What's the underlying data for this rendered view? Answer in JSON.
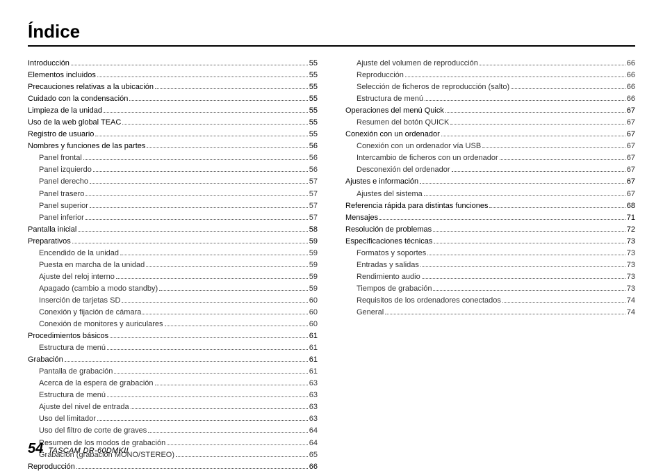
{
  "title": "Índice",
  "footer": {
    "page": "54",
    "product": "TASCAM  DR-60DMKII"
  },
  "leftColumn": [
    {
      "level": 1,
      "label": "Introducción",
      "page": "55"
    },
    {
      "level": 1,
      "label": "Elementos incluidos",
      "page": "55"
    },
    {
      "level": 1,
      "label": "Precauciones relativas a la ubicación",
      "page": "55"
    },
    {
      "level": 1,
      "label": "Cuidado con la condensación",
      "page": "55"
    },
    {
      "level": 1,
      "label": "Limpieza de la unidad",
      "page": "55"
    },
    {
      "level": 1,
      "label": "Uso de la web global TEAC",
      "page": "55"
    },
    {
      "level": 1,
      "label": "Registro de usuario",
      "page": "55"
    },
    {
      "level": 1,
      "label": "Nombres y funciones de las partes",
      "page": "56"
    },
    {
      "level": 2,
      "label": "Panel frontal",
      "page": "56"
    },
    {
      "level": 2,
      "label": "Panel izquierdo",
      "page": "56"
    },
    {
      "level": 2,
      "label": "Panel derecho",
      "page": "57"
    },
    {
      "level": 2,
      "label": "Panel trasero",
      "page": "57"
    },
    {
      "level": 2,
      "label": "Panel superior",
      "page": "57"
    },
    {
      "level": 2,
      "label": "Panel inferior",
      "page": "57"
    },
    {
      "level": 1,
      "label": "Pantalla inicial",
      "page": "58"
    },
    {
      "level": 1,
      "label": "Preparativos",
      "page": "59"
    },
    {
      "level": 2,
      "label": "Encendido de la unidad",
      "page": "59"
    },
    {
      "level": 2,
      "label": "Puesta en marcha de la unidad",
      "page": "59"
    },
    {
      "level": 2,
      "label": "Ajuste del reloj interno",
      "page": "59"
    },
    {
      "level": 2,
      "label": "Apagado (cambio a modo standby)",
      "page": "59"
    },
    {
      "level": 2,
      "label": "Inserción de tarjetas SD",
      "page": "60"
    },
    {
      "level": 2,
      "label": "Conexión y fijación de cámara",
      "page": "60"
    },
    {
      "level": 2,
      "label": "Conexión de monitores y auriculares",
      "page": "60"
    },
    {
      "level": 1,
      "label": "Procedimientos básicos",
      "page": "61"
    },
    {
      "level": 2,
      "label": "Estructura de menú",
      "page": "61"
    },
    {
      "level": 1,
      "label": "Grabación",
      "page": "61"
    },
    {
      "level": 2,
      "label": "Pantalla de grabación",
      "page": "61"
    },
    {
      "level": 2,
      "label": "Acerca de la espera de grabación",
      "page": "63"
    },
    {
      "level": 2,
      "label": "Estructura de menú",
      "page": "63"
    },
    {
      "level": 2,
      "label": "Ajuste del nivel de entrada",
      "page": "63"
    },
    {
      "level": 2,
      "label": "Uso del limitador",
      "page": "63"
    },
    {
      "level": 2,
      "label": "Uso del filtro de corte de graves",
      "page": "64"
    },
    {
      "level": 2,
      "label": "Resumen de los modos de grabación",
      "page": "64"
    },
    {
      "level": 2,
      "label": "Grabación (grabación MONO/STEREO)",
      "page": "65"
    },
    {
      "level": 1,
      "label": "Reproducción",
      "page": "66"
    }
  ],
  "rightColumn": [
    {
      "level": 2,
      "label": "Ajuste del volumen de reproducción",
      "page": "66"
    },
    {
      "level": 2,
      "label": "Reproducción",
      "page": "66"
    },
    {
      "level": 2,
      "label": "Selección de ficheros de reproducción (salto)",
      "page": "66"
    },
    {
      "level": 2,
      "label": "Estructura de menú",
      "page": "66"
    },
    {
      "level": 1,
      "label": "Operaciones del menú Quick",
      "page": "67"
    },
    {
      "level": 2,
      "label": "Resumen del botón QUICK",
      "page": "67"
    },
    {
      "level": 1,
      "label": "Conexión con un ordenador",
      "page": "67"
    },
    {
      "level": 2,
      "label": "Conexión con un ordenador vía USB",
      "page": "67"
    },
    {
      "level": 2,
      "label": "Intercambio de ficheros con un ordenador",
      "page": "67"
    },
    {
      "level": 2,
      "label": "Desconexión del ordenador",
      "page": "67"
    },
    {
      "level": 1,
      "label": "Ajustes e información",
      "page": "67"
    },
    {
      "level": 2,
      "label": "Ajustes del sistema",
      "page": "67"
    },
    {
      "level": 1,
      "label": "Referencia rápida para distintas funciones",
      "page": "68"
    },
    {
      "level": 1,
      "label": "Mensajes",
      "page": "71"
    },
    {
      "level": 1,
      "label": "Resolución de problemas",
      "page": "72"
    },
    {
      "level": 1,
      "label": "Especificaciones técnicas",
      "page": "73"
    },
    {
      "level": 2,
      "label": "Formatos y soportes",
      "page": "73"
    },
    {
      "level": 2,
      "label": "Entradas y salidas",
      "page": "73"
    },
    {
      "level": 2,
      "label": "Rendimiento audio",
      "page": "73"
    },
    {
      "level": 2,
      "label": "Tiempos de grabación",
      "page": "73"
    },
    {
      "level": 2,
      "label": "Requisitos de los ordenadores conectados",
      "page": "74"
    },
    {
      "level": 2,
      "label": "General",
      "page": "74"
    }
  ]
}
